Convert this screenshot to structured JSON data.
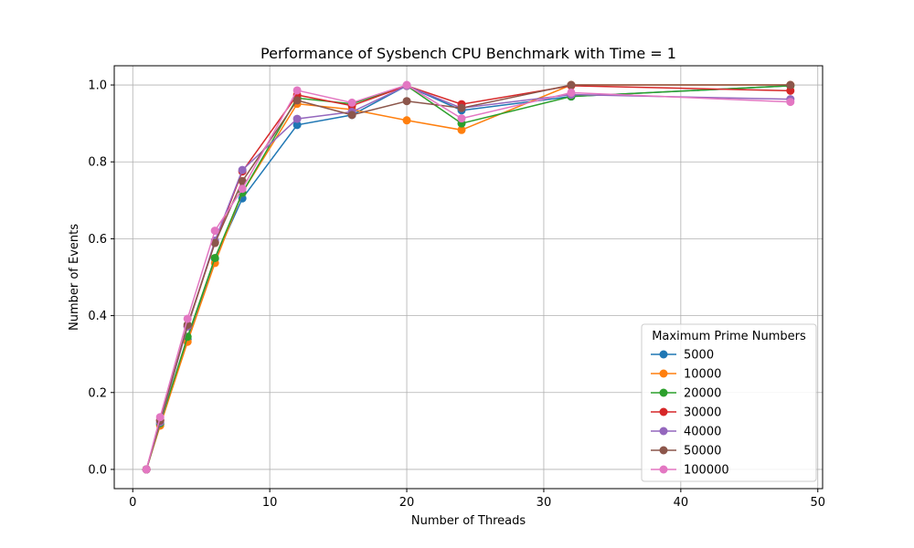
{
  "chart_data": {
    "type": "line",
    "title": "Performance of Sysbench CPU Benchmark with Time = 1",
    "xlabel": "Number of Threads",
    "ylabel": "Number of Events",
    "xlim": [
      -1.35,
      50.35
    ],
    "ylim": [
      -0.05,
      1.05
    ],
    "xticks": [
      0,
      10,
      20,
      30,
      40,
      50
    ],
    "yticks": [
      0.0,
      0.2,
      0.4,
      0.6,
      0.8,
      1.0
    ],
    "grid": true,
    "legend": {
      "title": "Maximum Prime Numbers",
      "placement": "lower-right"
    },
    "x": [
      1,
      2,
      4,
      6,
      8,
      12,
      16,
      20,
      24,
      32,
      48
    ],
    "series": [
      {
        "name": "5000",
        "color": "#1f77b4",
        "values": [
          0.0,
          0.117,
          0.338,
          0.548,
          0.705,
          0.896,
          0.922,
          0.998,
          0.934,
          0.97,
          0.998
        ]
      },
      {
        "name": "10000",
        "color": "#ff7f0e",
        "values": [
          0.0,
          0.114,
          0.332,
          0.537,
          0.72,
          0.951,
          0.936,
          0.908,
          0.883,
          1.0,
          1.0
        ]
      },
      {
        "name": "20000",
        "color": "#2ca02c",
        "values": [
          0.0,
          0.12,
          0.345,
          0.55,
          0.72,
          0.966,
          0.951,
          0.998,
          0.9,
          0.97,
          0.998
        ]
      },
      {
        "name": "30000",
        "color": "#d62728",
        "values": [
          0.0,
          0.128,
          0.372,
          0.591,
          0.775,
          0.974,
          0.946,
          0.998,
          0.95,
          0.998,
          0.985
        ]
      },
      {
        "name": "40000",
        "color": "#9467bd",
        "values": [
          0.0,
          0.123,
          0.372,
          0.595,
          0.779,
          0.912,
          0.93,
          0.998,
          0.94,
          0.975,
          0.963
        ]
      },
      {
        "name": "50000",
        "color": "#8c564b",
        "values": [
          0.0,
          0.127,
          0.376,
          0.589,
          0.75,
          0.96,
          0.922,
          0.958,
          0.94,
          1.0,
          1.0
        ]
      },
      {
        "name": "100000",
        "color": "#e377c2",
        "values": [
          0.0,
          0.136,
          0.392,
          0.621,
          0.73,
          0.986,
          0.954,
          1.0,
          0.913,
          0.98,
          0.956
        ]
      }
    ]
  }
}
